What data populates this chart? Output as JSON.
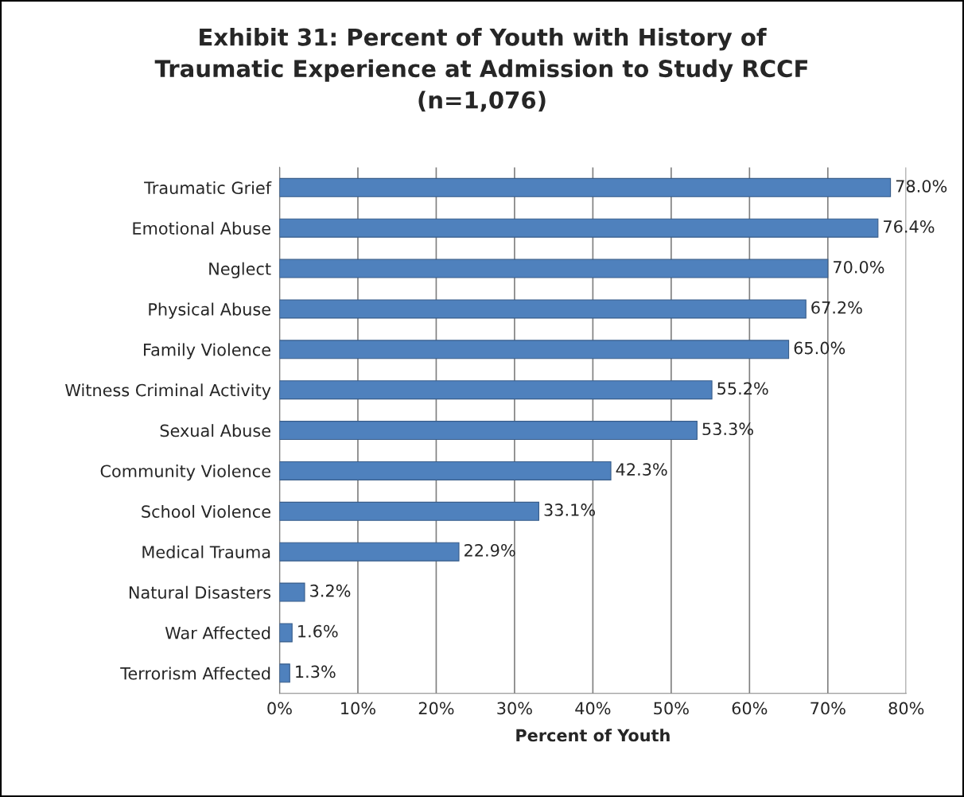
{
  "chart_data": {
    "type": "bar",
    "orientation": "horizontal",
    "title": "Exhibit 31: Percent of Youth with History of\nTraumatic Experience at Admission to Study RCCF\n(n=1,076)",
    "xlabel": "Percent of Youth",
    "categories": [
      "Traumatic Grief",
      "Emotional Abuse",
      "Neglect",
      "Physical Abuse",
      "Family Violence",
      "Witness Criminal Activity",
      "Sexual Abuse",
      "Community Violence",
      "School Violence",
      "Medical Trauma",
      "Natural Disasters",
      "War Affected",
      "Terrorism Affected"
    ],
    "values": [
      78.0,
      76.4,
      70.0,
      67.2,
      65.0,
      55.2,
      53.3,
      42.3,
      33.1,
      22.9,
      3.2,
      1.6,
      1.3
    ],
    "value_labels": [
      "78.0%",
      "76.4%",
      "70.0%",
      "67.2%",
      "65.0%",
      "55.2%",
      "53.3%",
      "42.3%",
      "33.1%",
      "22.9%",
      "3.2%",
      "1.6%",
      "1.3%"
    ],
    "color": "#4f81bd",
    "xlim": [
      0,
      80
    ],
    "xticks": [
      {
        "value": 0,
        "label": "0%"
      },
      {
        "value": 10,
        "label": "10%"
      },
      {
        "value": 20,
        "label": "20%"
      },
      {
        "value": 30,
        "label": "30%"
      },
      {
        "value": 40,
        "label": "40%"
      },
      {
        "value": 50,
        "label": "50%"
      },
      {
        "value": 60,
        "label": "60%"
      },
      {
        "value": 70,
        "label": "70%"
      },
      {
        "value": 80,
        "label": "80%"
      }
    ],
    "grid": "x"
  }
}
